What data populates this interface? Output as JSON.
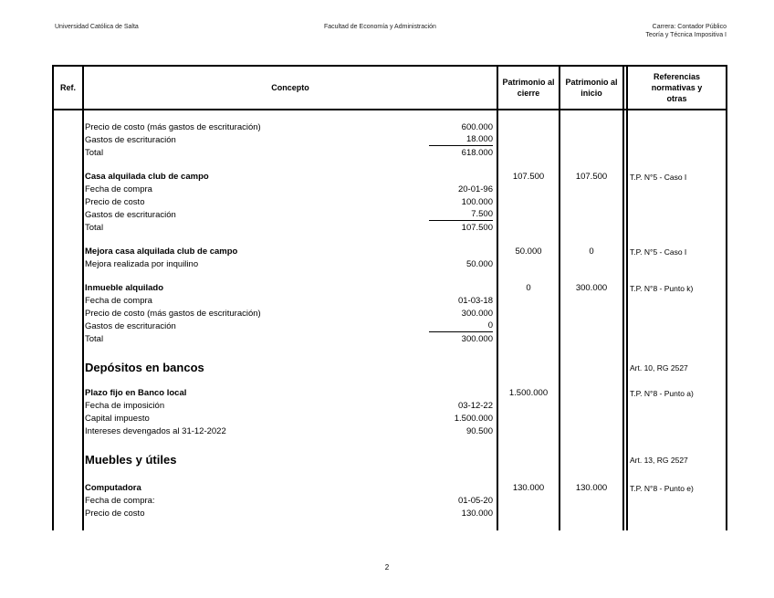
{
  "header": {
    "left": "Universidad Católica de Salta",
    "center": "Facultad de Economía y Administración",
    "right_line1": "Carrera: Contador Público",
    "right_line2": "Teoría y Técnica Impositiva I"
  },
  "table": {
    "columns": {
      "ref": "Ref.",
      "concepto": "Concepto",
      "cierre": "Patrimonio al cierre",
      "inicio": "Patrimonio al inicio",
      "referencias": "Referencias normativas y otras"
    },
    "groups": [
      {
        "rows": [
          {
            "label": "Precio de costo (más gastos de escrituración)",
            "value": "600.000"
          },
          {
            "label": "Gastos de escrituración",
            "value": "18.000",
            "underline": true
          },
          {
            "label": "Total",
            "value": "618.000"
          }
        ]
      },
      {
        "rows": [
          {
            "label": "Casa alquilada club de campo",
            "bold": true,
            "cierre": "107.500",
            "inicio": "107.500",
            "ref": "T.P. N°5 - Caso I"
          },
          {
            "label": "Fecha de compra",
            "value": "20-01-96"
          },
          {
            "label": "Precio de costo",
            "value": "100.000"
          },
          {
            "label": "Gastos de escrituración",
            "value": "7.500",
            "underline": true
          },
          {
            "label": "Total",
            "value": "107.500"
          }
        ]
      },
      {
        "rows": [
          {
            "label": "Mejora casa alquilada club de campo",
            "bold": true,
            "cierre": "50.000",
            "inicio": "0",
            "ref": "T.P. N°5 - Caso I"
          },
          {
            "label": "Mejora realizada por inquilino",
            "value": "50.000"
          }
        ]
      },
      {
        "rows": [
          {
            "label": "Inmueble alquilado",
            "bold": true,
            "cierre": "0",
            "inicio": "300.000",
            "ref": "T.P. N°8 - Punto k)"
          },
          {
            "label": "Fecha de compra",
            "value": "01-03-18"
          },
          {
            "label": "Precio de costo (más gastos de escrituración)",
            "value": "300.000"
          },
          {
            "label": "Gastos de escrituración",
            "value": "0",
            "underline": true
          },
          {
            "label": "Total",
            "value": "300.000"
          }
        ]
      },
      {
        "section": true,
        "rows": [
          {
            "label": "Depósitos en bancos",
            "heading": true,
            "ref": "Art. 10, RG 2527"
          }
        ]
      },
      {
        "rows": [
          {
            "label": "Plazo fijo en Banco local",
            "bold": true,
            "cierre": "1.500.000",
            "ref": "T.P. N°8 - Punto a)"
          },
          {
            "label": "Fecha de imposición",
            "value": "03-12-22"
          },
          {
            "label": "Capital impuesto",
            "value": "1.500.000"
          },
          {
            "label": "Intereses devengados al 31-12-2022",
            "value": "90.500"
          }
        ]
      },
      {
        "section": true,
        "rows": [
          {
            "label": "Muebles y útiles",
            "heading": true,
            "ref": "Art. 13, RG 2527"
          }
        ]
      },
      {
        "section": true,
        "rows": [
          {
            "label": "Computadora",
            "bold": true,
            "cierre": "130.000",
            "inicio": "130.000",
            "ref": "T.P. N°8 - Punto e)"
          },
          {
            "label": "Fecha de compra:",
            "value": "01-05-20"
          },
          {
            "label": "Precio de costo",
            "value": "130.000"
          }
        ]
      }
    ]
  },
  "footer": {
    "page_number": "2"
  }
}
